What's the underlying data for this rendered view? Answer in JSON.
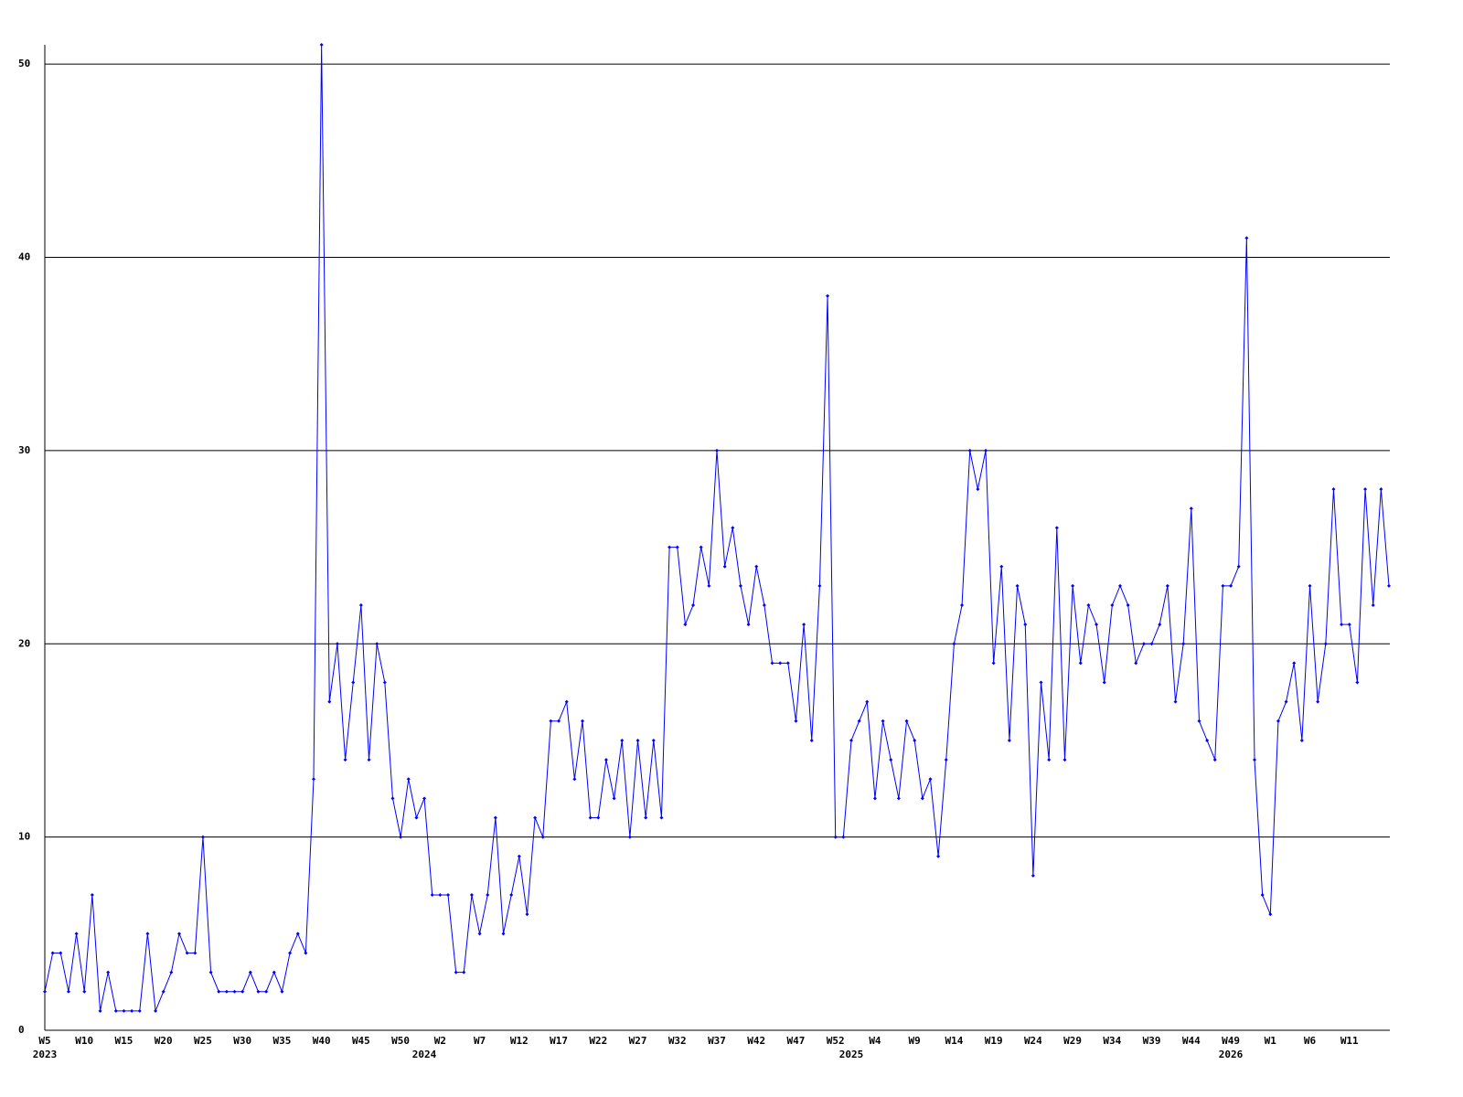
{
  "chart_data": {
    "type": "line",
    "color": "#0000ff",
    "grid": true,
    "markers": true,
    "categories": [
      "W5",
      null,
      null,
      null,
      null,
      "W10",
      null,
      null,
      null,
      null,
      "W15",
      null,
      null,
      null,
      null,
      "W20",
      null,
      null,
      null,
      null,
      "W25",
      null,
      null,
      null,
      null,
      "W30",
      null,
      null,
      null,
      null,
      "W35",
      null,
      null,
      null,
      null,
      "W40",
      null,
      null,
      null,
      null,
      "W45",
      null,
      null,
      null,
      null,
      "W50",
      null,
      null,
      null,
      null,
      "W2",
      null,
      null,
      null,
      null,
      "W7",
      null,
      null,
      null,
      null,
      "W12",
      null,
      null,
      null,
      null,
      "W17",
      null,
      null,
      null,
      null,
      "W22",
      null,
      null,
      null,
      null,
      "W27",
      null,
      null,
      null,
      null,
      "W32",
      null,
      null,
      null,
      null,
      "W37",
      null,
      null,
      null,
      null,
      "W42",
      null,
      null,
      null,
      null,
      "W47",
      null,
      null,
      null,
      null,
      "W52",
      null,
      null,
      null,
      null,
      "W4",
      null,
      null,
      null,
      null,
      "W9",
      null,
      null,
      null,
      null,
      "W14",
      null,
      null,
      null,
      null,
      "W19",
      null,
      null,
      null,
      null,
      "W24",
      null,
      null,
      null,
      null,
      "W29",
      null,
      null,
      null,
      null,
      "W34",
      null,
      null,
      null,
      null,
      "W39",
      null,
      null,
      null,
      null,
      "W44",
      null,
      null,
      null,
      null,
      "W49",
      null,
      null,
      null,
      null,
      "W1",
      null,
      null,
      null,
      null,
      "W6",
      null,
      null,
      null,
      null,
      "W11",
      null,
      null,
      null,
      null,
      null
    ],
    "years": [
      "2023",
      null,
      null,
      null,
      null,
      null,
      null,
      null,
      null,
      null,
      null,
      null,
      null,
      null,
      null,
      null,
      null,
      null,
      null,
      null,
      null,
      null,
      null,
      null,
      null,
      null,
      null,
      null,
      null,
      null,
      null,
      null,
      null,
      null,
      null,
      null,
      null,
      null,
      null,
      null,
      null,
      null,
      null,
      null,
      null,
      null,
      null,
      null,
      "2024",
      null,
      null,
      null,
      null,
      null,
      null,
      null,
      null,
      null,
      null,
      null,
      null,
      null,
      null,
      null,
      null,
      null,
      null,
      null,
      null,
      null,
      null,
      null,
      null,
      null,
      null,
      null,
      null,
      null,
      null,
      null,
      null,
      null,
      null,
      null,
      null,
      null,
      null,
      null,
      null,
      null,
      null,
      null,
      null,
      null,
      null,
      null,
      null,
      null,
      null,
      null,
      null,
      null,
      "2025",
      null,
      null,
      null,
      null,
      null,
      null,
      null,
      null,
      null,
      null,
      null,
      null,
      null,
      null,
      null,
      null,
      null,
      null,
      null,
      null,
      null,
      null,
      null,
      null,
      null,
      null,
      null,
      null,
      null,
      null,
      null,
      null,
      null,
      null,
      null,
      null,
      null,
      null,
      null,
      null,
      null,
      null,
      null,
      null,
      null,
      null,
      null,
      "2026",
      null,
      null,
      null,
      null,
      null,
      null,
      null,
      null,
      null,
      null,
      null,
      null,
      null,
      null,
      null
    ],
    "values": [
      2,
      4,
      4,
      2,
      5,
      2,
      7,
      1,
      3,
      1,
      1,
      1,
      1,
      5,
      1,
      2,
      3,
      5,
      4,
      4,
      10,
      3,
      2,
      2,
      2,
      2,
      3,
      2,
      2,
      3,
      2,
      4,
      5,
      4,
      13,
      51,
      17,
      20,
      14,
      18,
      22,
      14,
      20,
      18,
      12,
      10,
      13,
      11,
      12,
      7,
      7,
      7,
      3,
      3,
      7,
      5,
      7,
      11,
      5,
      7,
      9,
      6,
      11,
      10,
      16,
      16,
      17,
      13,
      16,
      11,
      11,
      14,
      12,
      15,
      10,
      15,
      11,
      15,
      11,
      25,
      25,
      21,
      22,
      25,
      23,
      30,
      24,
      26,
      23,
      21,
      24,
      22,
      19,
      19,
      19,
      16,
      21,
      15,
      23,
      38,
      10,
      10,
      15,
      16,
      17,
      12,
      16,
      14,
      12,
      16,
      15,
      12,
      13,
      9,
      14,
      20,
      22,
      30,
      28,
      30,
      19,
      24,
      15,
      23,
      21,
      8,
      18,
      14,
      26,
      14,
      23,
      19,
      22,
      21,
      18,
      22,
      23,
      22,
      19,
      20,
      20,
      21,
      23,
      17,
      20,
      27,
      16,
      15,
      14,
      23,
      23,
      24,
      41,
      14,
      7,
      6,
      16,
      17,
      19,
      15,
      23,
      17,
      20,
      28,
      21,
      21,
      18,
      28,
      22,
      28,
      23
    ],
    "ylim": [
      0,
      51
    ],
    "yticks": [
      0,
      10,
      20,
      30,
      40,
      50
    ]
  }
}
